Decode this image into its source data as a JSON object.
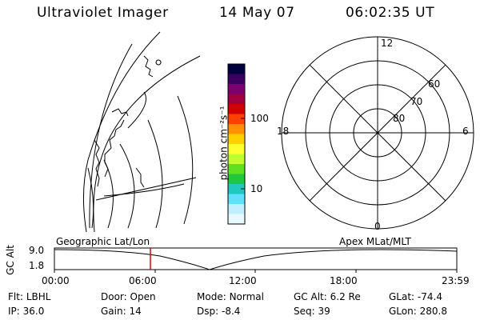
{
  "header": {
    "instrument": "Ultraviolet Imager",
    "date": "14 May 07",
    "time": "06:02:35 UT"
  },
  "colorbar": {
    "label": "photon cm⁻²s⁻¹",
    "ticks": [
      "100",
      "10"
    ],
    "colors": [
      "#000040",
      "#3a0060",
      "#7a0070",
      "#a00040",
      "#d00000",
      "#ff4000",
      "#ff9000",
      "#ffd000",
      "#ffff30",
      "#c0ff30",
      "#60e020",
      "#20c840",
      "#20c8c0",
      "#60e0ff",
      "#c0f0ff",
      "#e8f8ff"
    ]
  },
  "polar_plot": {
    "lat_labels": [
      "80",
      "70",
      "60"
    ],
    "mlt_labels": {
      "top": "12",
      "left": "18",
      "right": "6",
      "bottom": "0"
    }
  },
  "timeline": {
    "left_label": "Geographic Lat/Lon",
    "right_label": "Apex MLat/MLT",
    "axis_title": "GC Alt",
    "y_ticks": [
      "9.0",
      "1.8"
    ],
    "x_ticks": [
      "00:00",
      "06:00",
      "12:00",
      "18:00",
      "23:59"
    ],
    "marker_color": "#e00000",
    "marker_time": "06:02:35"
  },
  "info": {
    "row1": [
      {
        "label": "Flt:",
        "value": "LBHL"
      },
      {
        "label": "Door:",
        "value": "Open"
      },
      {
        "label": "Mode:",
        "value": "Normal"
      },
      {
        "label": "GC Alt:",
        "value": "6.2 Re"
      },
      {
        "label": "GLat:",
        "value": "-74.4"
      }
    ],
    "row2": [
      {
        "label": "IP:",
        "value": "36.0"
      },
      {
        "label": "Gain:",
        "value": "14"
      },
      {
        "label": "Dsp:",
        "value": "-8.4"
      },
      {
        "label": "Seq:",
        "value": "39"
      },
      {
        "label": "GLon:",
        "value": "280.8"
      }
    ]
  }
}
